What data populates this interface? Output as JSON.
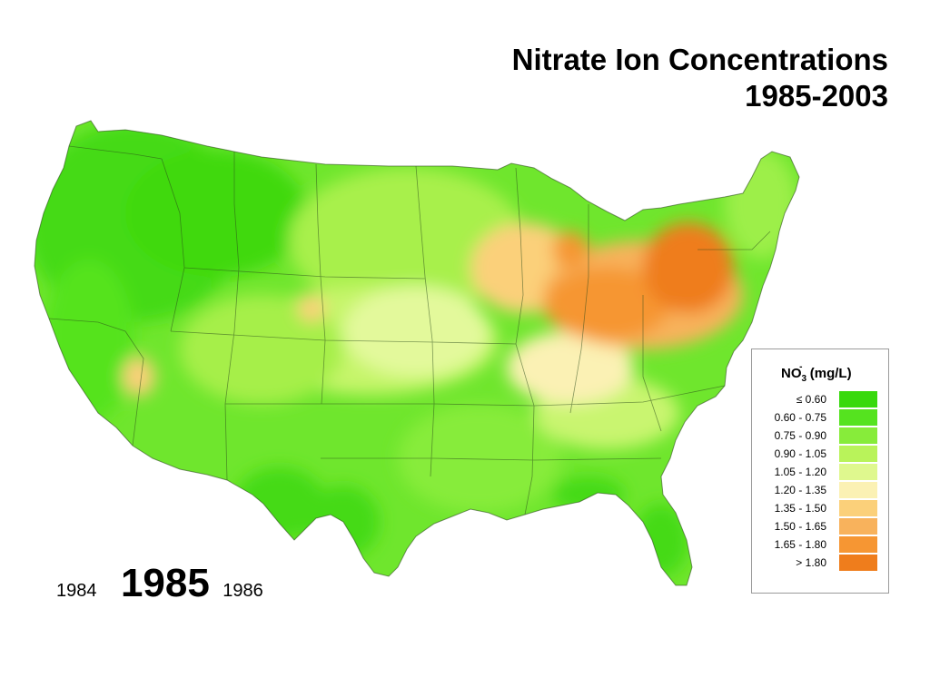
{
  "title": {
    "line1": "Nitrate Ion Concentrations",
    "line2": "1985-2003"
  },
  "years": {
    "previous": "1984",
    "current": "1985",
    "next": "1986"
  },
  "legend": {
    "title_main": "NO",
    "title_sub": "3",
    "title_sup": "-",
    "title_unit": "(mg/L)",
    "items": [
      {
        "label": "≤ 0.60",
        "color": "#38d90d"
      },
      {
        "label": "0.60 - 0.75",
        "color": "#55e31f"
      },
      {
        "label": "0.75 - 0.90",
        "color": "#87ec3a"
      },
      {
        "label": "0.90 - 1.05",
        "color": "#b9f35a"
      },
      {
        "label": "1.05 - 1.20",
        "color": "#dff88e"
      },
      {
        "label": "1.20 - 1.35",
        "color": "#fbf1b4"
      },
      {
        "label": "1.35 - 1.50",
        "color": "#fbd07a"
      },
      {
        "label": "1.50 - 1.65",
        "color": "#f8b25c"
      },
      {
        "label": "1.65 - 1.80",
        "color": "#f69633"
      },
      {
        "label": "> 1.80",
        "color": "#ef7d1c"
      }
    ]
  }
}
